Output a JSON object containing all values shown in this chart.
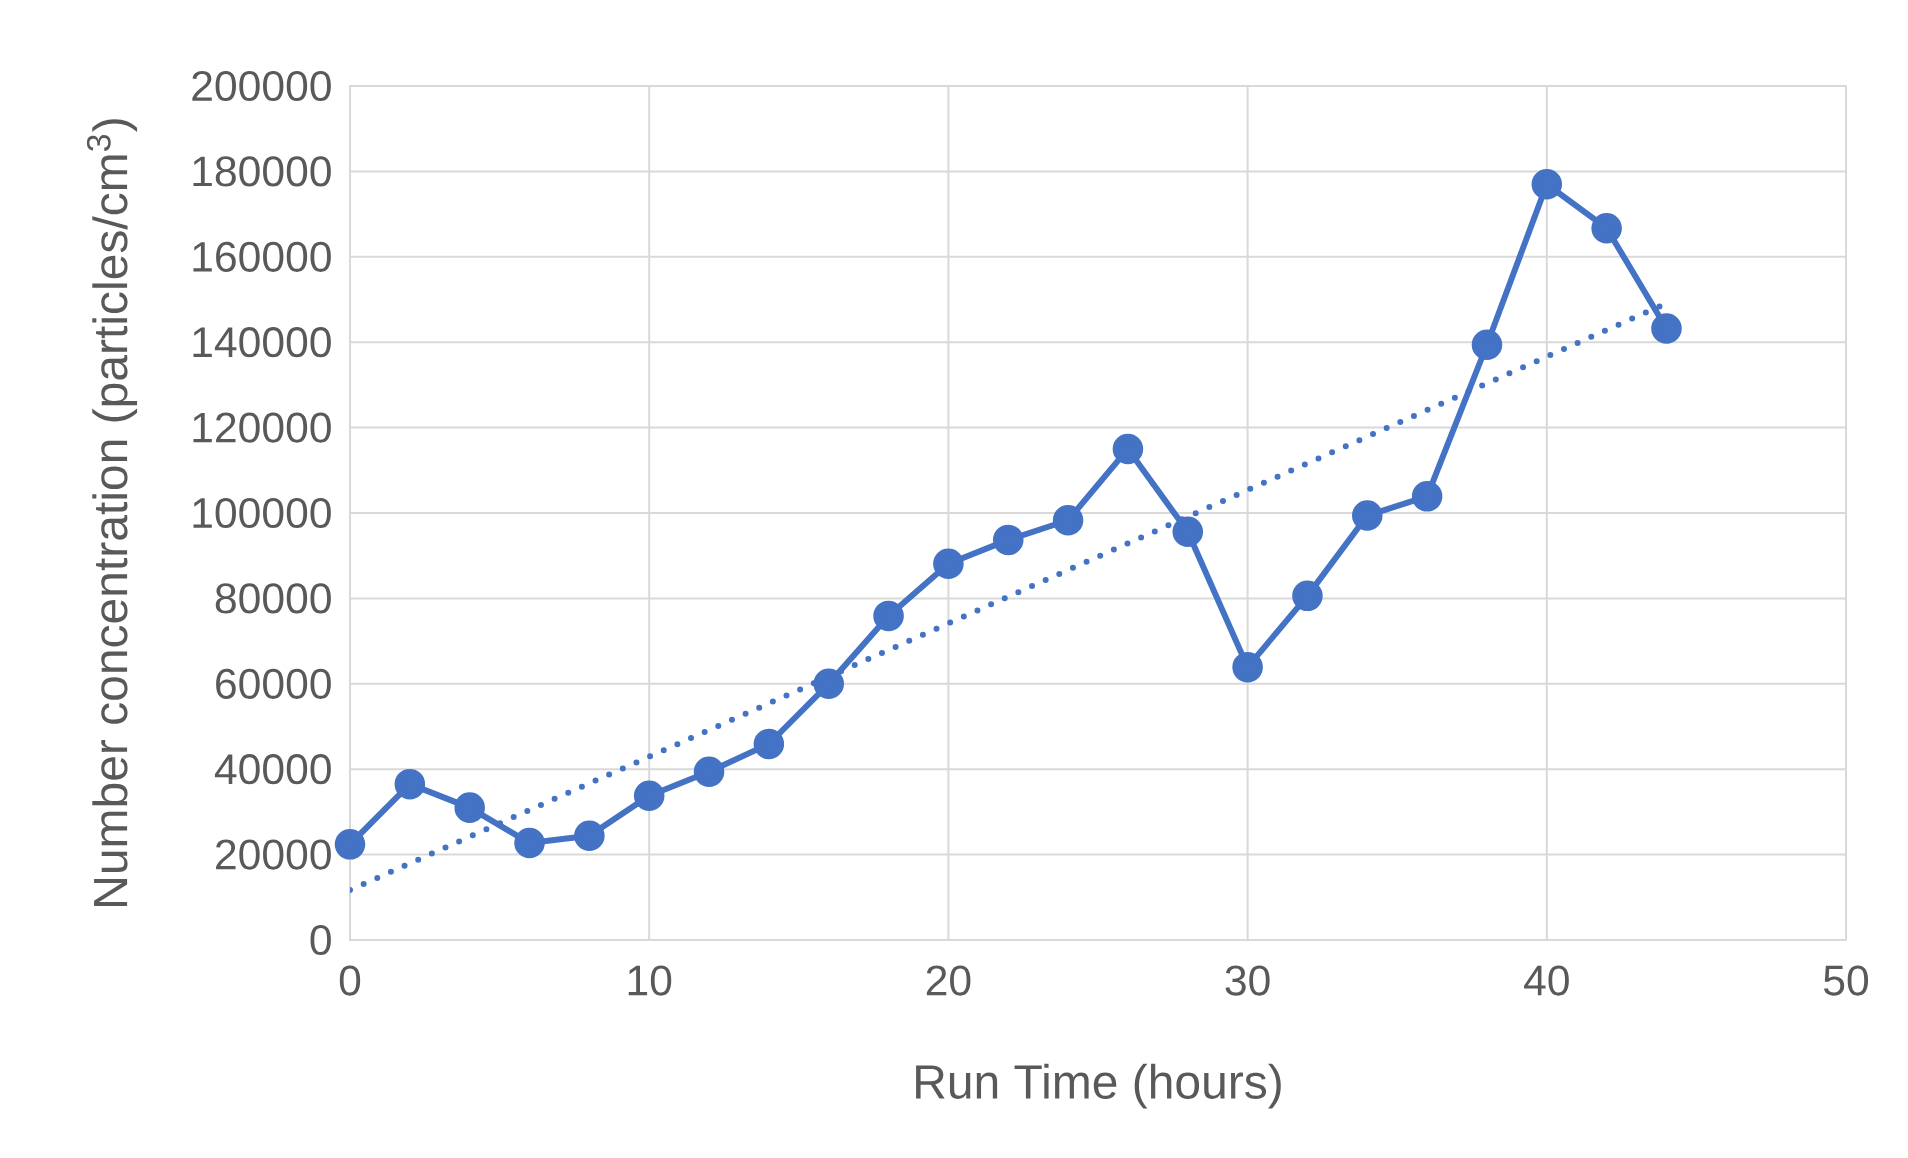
{
  "chart_data": {
    "type": "line",
    "xlabel": "Run Time (hours)",
    "ylabel": "Number concentration (particles/cm$^{3}$)",
    "x": [
      0,
      2,
      4,
      6,
      8,
      10,
      12,
      14,
      16,
      18,
      20,
      22,
      24,
      26,
      28,
      30,
      32,
      34,
      36,
      38,
      40,
      42,
      44
    ],
    "series": [
      {
        "color": "#4472c4",
        "marker": "circle",
        "line_style": "solid",
        "values": [
          22400,
          36500,
          31000,
          22700,
          24400,
          33800,
          39400,
          45900,
          60000,
          75900,
          88100,
          93700,
          98300,
          115000,
          95600,
          63900,
          80600,
          99400,
          103900,
          139400,
          177000,
          166700,
          143200
        ]
      },
      {
        "color": "#4472c4",
        "marker": "none",
        "line_style": "dotted",
        "x": [
          0,
          44
        ],
        "values": [
          11700,
          149100
        ]
      }
    ],
    "xlim": [
      0,
      50
    ],
    "xticks": [
      0,
      10,
      20,
      30,
      40,
      50
    ],
    "ylim": [
      0,
      200000
    ],
    "yticks": [
      0,
      20000,
      40000,
      60000,
      80000,
      100000,
      120000,
      140000,
      160000,
      180000,
      200000
    ],
    "grid": true
  }
}
